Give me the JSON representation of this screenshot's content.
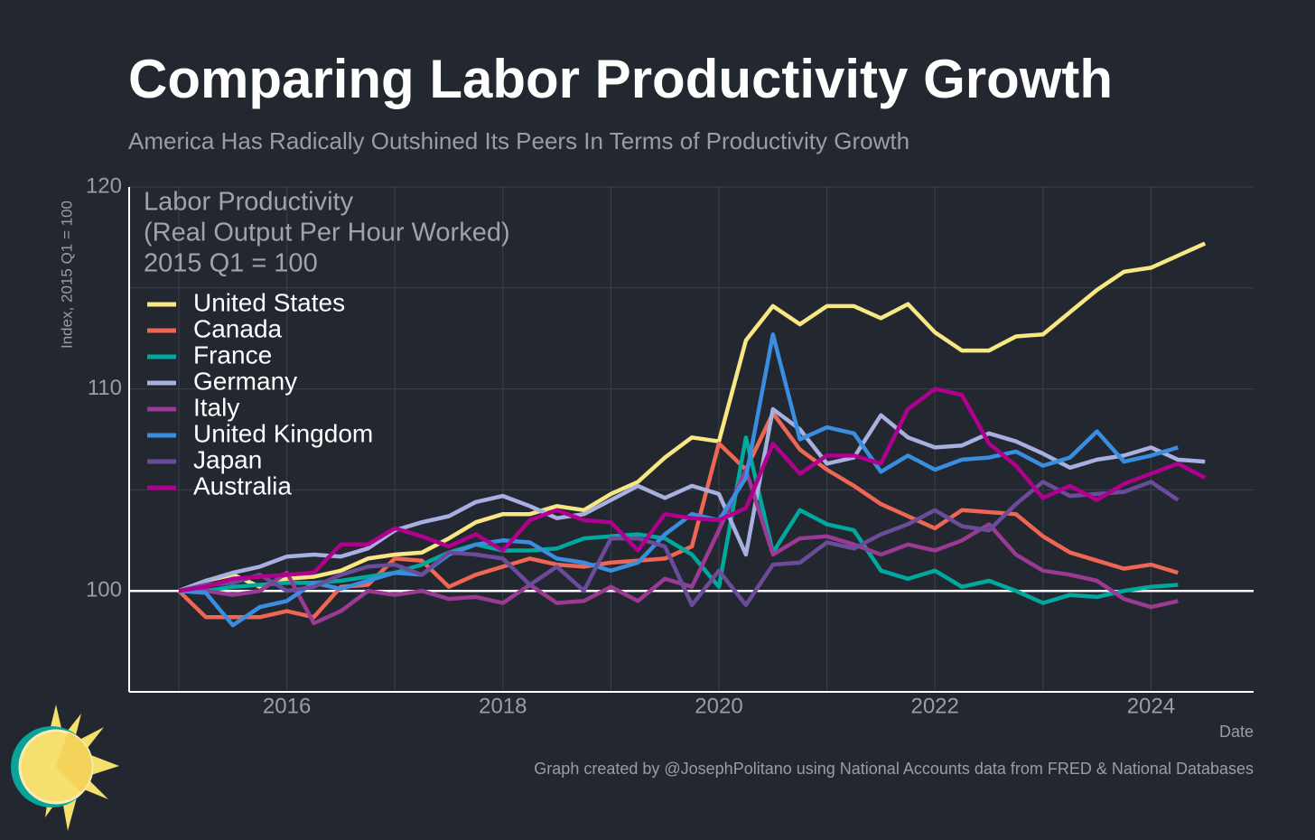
{
  "chart_data": {
    "type": "line",
    "title": "Comparing Labor Productivity Growth",
    "subtitle": "America Has Radically Outshined Its Peers In Terms of Productivity Growth",
    "annotation": [
      "Labor Productivity",
      "(Real Output Per Hour Worked)",
      "2015 Q1 = 100"
    ],
    "y_label": "Index, 2015 Q1 = 100",
    "x_label": "Date",
    "source": "Graph created by @JosephPolitano using National Accounts data from FRED & National Databases",
    "x": [
      2015,
      2015.25,
      2015.5,
      2015.75,
      2016,
      2016.25,
      2016.5,
      2016.75,
      2017,
      2017.25,
      2017.5,
      2017.75,
      2018,
      2018.25,
      2018.5,
      2018.75,
      2019,
      2019.25,
      2019.5,
      2019.75,
      2020,
      2020.25,
      2020.5,
      2020.75,
      2021,
      2021.25,
      2021.5,
      2021.75,
      2022,
      2022.25,
      2022.5,
      2022.75,
      2023,
      2023.25,
      2023.5,
      2023.75,
      2024,
      2024.25,
      2024.5
    ],
    "xlim": [
      2014.54,
      2024.95
    ],
    "xticks": [
      2016,
      2018,
      2020,
      2022,
      2024
    ],
    "xminor": [
      2015,
      2017,
      2019,
      2021,
      2023
    ],
    "ylim": [
      95,
      120
    ],
    "yticks": [
      100,
      110,
      120
    ],
    "yminor": [
      105,
      115
    ],
    "reference_line": 100,
    "grid": true,
    "legend": "upper left",
    "series": [
      {
        "name": "United States",
        "color": "#f9e784",
        "values": [
          100,
          100.5,
          100.8,
          100.2,
          100.6,
          100.7,
          101,
          101.6,
          101.8,
          101.9,
          102.6,
          103.4,
          103.8,
          103.8,
          104.2,
          104,
          104.8,
          105.4,
          106.6,
          107.6,
          107.4,
          112.4,
          114.1,
          113.2,
          114.1,
          114.1,
          113.5,
          114.2,
          112.8,
          111.9,
          111.9,
          112.6,
          112.7,
          113.8,
          114.9,
          115.8,
          116,
          116.6,
          117.2
        ]
      },
      {
        "name": "Canada",
        "color": "#ef6654",
        "values": [
          100,
          98.7,
          98.7,
          98.7,
          99,
          98.7,
          100.2,
          100.3,
          101.6,
          101.5,
          100.2,
          100.8,
          101.2,
          101.6,
          101.3,
          101.2,
          101.4,
          101.5,
          101.6,
          102.2,
          107.3,
          106,
          108.8,
          107,
          106,
          105.2,
          104.3,
          103.7,
          103.1,
          104,
          103.9,
          103.8,
          102.7,
          101.9,
          101.5,
          101.1,
          101.3,
          100.9,
          null
        ]
      },
      {
        "name": "France",
        "color": "#00a99d",
        "values": [
          100,
          100,
          100.2,
          100.3,
          100.4,
          100.4,
          100.5,
          100.7,
          100.9,
          101.3,
          101.9,
          102.3,
          102,
          102,
          102.1,
          102.6,
          102.7,
          102.8,
          102.6,
          101.8,
          100.2,
          107.6,
          101.9,
          104,
          103.3,
          103,
          101,
          100.6,
          101,
          100.2,
          100.5,
          100,
          99.4,
          99.8,
          99.7,
          100,
          100.2,
          100.3,
          null
        ]
      },
      {
        "name": "Germany",
        "color": "#a7b0e0",
        "values": [
          100,
          100.5,
          100.9,
          101.2,
          101.7,
          101.8,
          101.7,
          102.1,
          103,
          103.4,
          103.7,
          104.4,
          104.7,
          104.2,
          103.6,
          103.8,
          104.5,
          105.2,
          104.6,
          105.2,
          104.8,
          101.8,
          109,
          108,
          106.3,
          106.6,
          108.7,
          107.6,
          107.1,
          107.2,
          107.8,
          107.4,
          106.8,
          106.1,
          106.5,
          106.7,
          107.1,
          106.5,
          106.4
        ]
      },
      {
        "name": "Italy",
        "color": "#9a3a94",
        "values": [
          100,
          100,
          99.8,
          100,
          100.9,
          98.4,
          99,
          100,
          99.8,
          100,
          99.6,
          99.7,
          99.4,
          100.3,
          99.4,
          99.5,
          100.2,
          99.5,
          100.6,
          100.2,
          103,
          106,
          101.8,
          102.6,
          102.7,
          102.3,
          101.8,
          102.3,
          102,
          102.5,
          103.3,
          101.8,
          101,
          100.8,
          100.5,
          99.6,
          99.2,
          99.5,
          null
        ]
      },
      {
        "name": "United Kingdom",
        "color": "#3a8ee0",
        "values": [
          100,
          99.9,
          98.3,
          99.2,
          99.5,
          100.4,
          100.1,
          100.5,
          100.9,
          100.8,
          101.8,
          102.3,
          102.5,
          102.4,
          101.6,
          101.4,
          101,
          101.4,
          102.8,
          103.8,
          103.5,
          105.6,
          112.7,
          107.5,
          108.1,
          107.8,
          105.9,
          106.7,
          106,
          106.5,
          106.6,
          106.9,
          106.2,
          106.6,
          107.9,
          106.4,
          106.7,
          107.1,
          null
        ]
      },
      {
        "name": "Japan",
        "color": "#6b4c9a",
        "values": [
          100,
          100.3,
          100.4,
          100.8,
          100,
          100.2,
          100.8,
          101.2,
          101.3,
          100.8,
          101.9,
          101.8,
          101.6,
          100.3,
          101.2,
          100,
          102.6,
          102.6,
          102.2,
          99.3,
          101,
          99.3,
          101.3,
          101.4,
          102.4,
          102.1,
          102.8,
          103.3,
          104,
          103.2,
          103,
          104.3,
          105.4,
          104.7,
          104.8,
          104.9,
          105.4,
          104.5,
          null
        ]
      },
      {
        "name": "Australia",
        "color": "#b0008e",
        "values": [
          100,
          100.2,
          100.6,
          100.7,
          100.8,
          100.9,
          102.3,
          102.3,
          103.1,
          102.7,
          102.2,
          102.8,
          102,
          103.5,
          104,
          103.5,
          103.4,
          102,
          103.8,
          103.6,
          103.5,
          104.1,
          107.3,
          105.8,
          106.7,
          106.7,
          106.3,
          109,
          110,
          109.7,
          107.3,
          106.2,
          104.6,
          105.2,
          104.5,
          105.3,
          105.8,
          106.3,
          105.6
        ]
      }
    ]
  }
}
